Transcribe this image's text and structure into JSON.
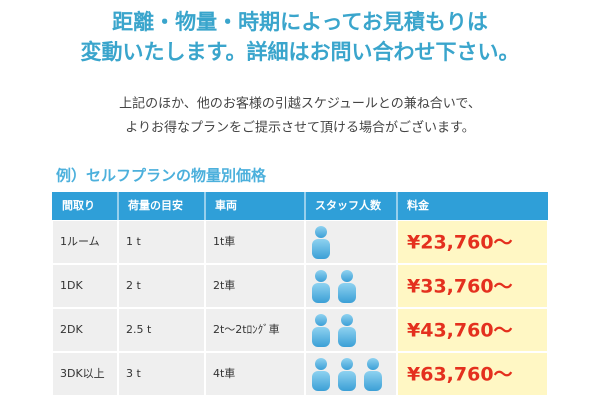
{
  "heading": {
    "lines": [
      "距離・物量・時期によってお見積もりは",
      "変動いたします。詳細はお問い合わせ下さい。"
    ]
  },
  "intro": {
    "lines": [
      "上記のほか、他のお客様の引越スケジュールとの兼ね合いで、",
      "よりお得なプランをご提示させて頂ける場合がございます。"
    ]
  },
  "table": {
    "title": "例）セルフプランの物量別価格",
    "header": [
      "間取り",
      "荷量の目安",
      "車両",
      "スタッフ人数",
      "料金"
    ],
    "rows": [
      {
        "layout": "1ルーム",
        "load": "1 t",
        "truck": "1t車",
        "staff": 1,
        "price": "¥23,760～"
      },
      {
        "layout": "1DK",
        "load": "2 t",
        "truck": "2t車",
        "staff": 2,
        "price": "¥33,760～"
      },
      {
        "layout": "2DK",
        "load": "2.5 t",
        "truck": "2t～2tﾛﾝｸﾞ車",
        "staff": 2,
        "price": "¥43,760～"
      },
      {
        "layout": "3DK以上",
        "load": "3 t",
        "truck": "4t車",
        "staff": 3,
        "price": "¥63,760～"
      }
    ]
  }
}
